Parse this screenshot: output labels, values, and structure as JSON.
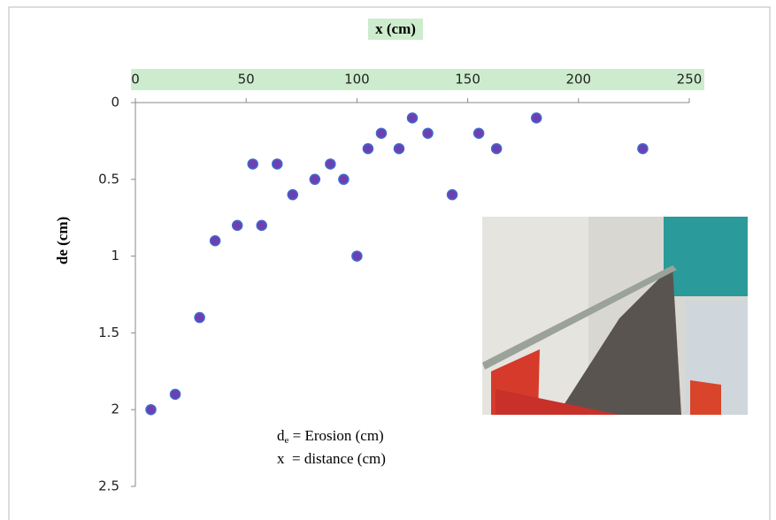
{
  "chart_data": {
    "type": "scatter",
    "x_title": "x (cm)",
    "y_title": "de (cm)",
    "x": [
      7,
      18,
      29,
      36,
      46,
      53,
      57,
      64,
      71,
      81,
      88,
      94,
      100,
      105,
      111,
      119,
      125,
      132,
      143,
      155,
      163,
      181,
      229
    ],
    "series": [
      {
        "color": "#6f3fb0",
        "values": [
          2.0,
          1.9,
          1.4,
          0.9,
          0.8,
          0.4,
          0.8,
          0.4,
          0.6,
          0.5,
          0.4,
          0.5,
          1.0,
          0.3,
          0.2,
          0.3,
          0.1,
          0.2,
          0.6,
          0.2,
          0.3,
          0.1,
          0.3
        ]
      }
    ],
    "xlim": [
      0,
      250
    ],
    "xticks": [
      0,
      50,
      100,
      150,
      200,
      250
    ],
    "ylim": [
      0,
      2.5
    ],
    "yticks": [
      0,
      0.5,
      1,
      1.5,
      2,
      2.5
    ],
    "y_reversed": true,
    "x_axis_position": "top",
    "annotation": [
      {
        "symbol": "d",
        "subscript": "e",
        "text": " = Erosion (cm)"
      },
      {
        "symbol": "x",
        "text": "  = distance (cm)"
      }
    ]
  }
}
